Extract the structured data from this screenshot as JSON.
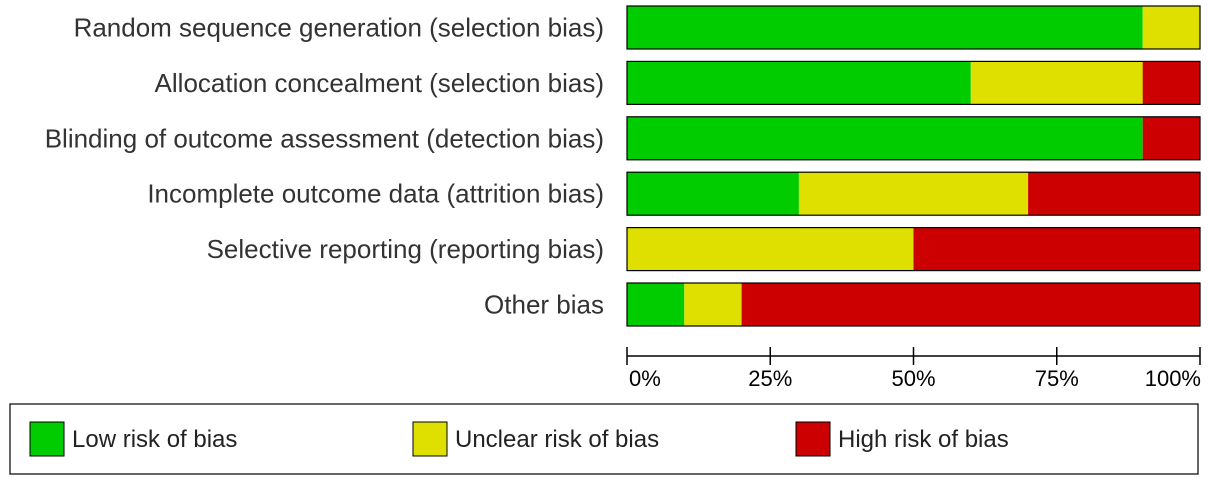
{
  "chart_data": {
    "type": "bar",
    "orientation": "horizontal",
    "stacked": true,
    "percent_axis": true,
    "categories": [
      "Random sequence generation (selection bias)",
      "Allocation concealment (selection bias)",
      "Blinding of outcome assessment (detection bias)",
      "Incomplete outcome data (attrition bias)",
      "Selective reporting (reporting bias)",
      "Other bias"
    ],
    "series": [
      {
        "name": "Low risk of bias",
        "color": "#00cc00",
        "values": [
          90,
          60,
          90,
          30,
          0,
          10
        ]
      },
      {
        "name": "Unclear risk of bias",
        "color": "#e0e000",
        "values": [
          10,
          30,
          0,
          40,
          50,
          10
        ]
      },
      {
        "name": "High risk of bias",
        "color": "#cc0000",
        "values": [
          0,
          10,
          10,
          30,
          50,
          80
        ]
      }
    ],
    "xlim": [
      0,
      100
    ],
    "xticks": [
      "0%",
      "25%",
      "50%",
      "75%",
      "100%"
    ],
    "legend_position": "bottom",
    "grid": false
  }
}
